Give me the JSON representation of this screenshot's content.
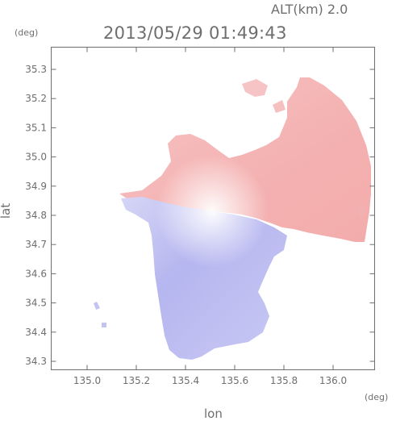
{
  "header": {
    "altitude_label": "ALT(km) 2.0",
    "timestamp": "2013/05/29 01:49:43"
  },
  "axes": {
    "x_title": "lon",
    "y_title": "lat",
    "x_unit": "(deg)",
    "y_unit": "(deg)",
    "x_ticks": [
      "135.0",
      "135.2",
      "135.4",
      "135.6",
      "135.8",
      "136.0"
    ],
    "y_ticks": [
      "35.3",
      "35.2",
      "35.1",
      "35.0",
      "34.9",
      "34.8",
      "34.7",
      "34.6",
      "34.5",
      "34.4",
      "34.3"
    ]
  },
  "colors": {
    "axis": "#6e6e6e",
    "positive": "#f4b3b3",
    "negative": "#b6b6f0",
    "neutral": "#f2f2f8"
  }
}
